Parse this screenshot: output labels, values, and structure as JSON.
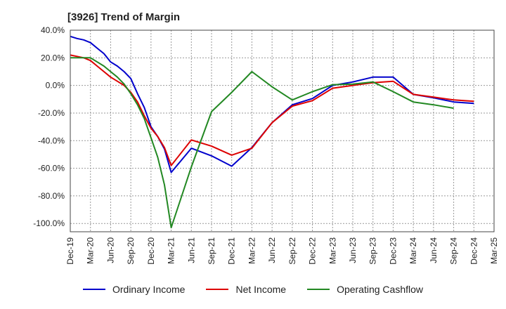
{
  "chart_data": {
    "type": "line",
    "title": "[3926]  Trend of Margin",
    "xlabel": "",
    "ylabel": "",
    "ylim": [
      -106,
      40
    ],
    "yticks": [
      40,
      20,
      0,
      -20,
      -40,
      -60,
      -80,
      -100
    ],
    "yticklabels": [
      "40.0%",
      "20.0%",
      "0.0%",
      "-20.0%",
      "-40.0%",
      "-60.0%",
      "-80.0%",
      "-100.0%"
    ],
    "xticklabels": [
      "Dec-19",
      "Mar-20",
      "Jun-20",
      "Sep-20",
      "Dec-20",
      "Mar-21",
      "Jun-21",
      "Sep-21",
      "Dec-21",
      "Mar-22",
      "Jun-22",
      "Sep-22",
      "Dec-22",
      "Mar-23",
      "Jun-23",
      "Sep-23",
      "Dec-23",
      "Mar-24",
      "Jun-24",
      "Sep-24",
      "Dec-24",
      "Mar-25"
    ],
    "grid": true,
    "legend_position": "bottom",
    "series": [
      {
        "name": "Ordinary Income",
        "color": "#0000cc",
        "x": [
          "Dec-19",
          "Jan-20",
          "Feb-20",
          "Mar-20",
          "Apr-20",
          "May-20",
          "Jun-20",
          "Jul-20",
          "Aug-20",
          "Sep-20",
          "Oct-20",
          "Nov-20",
          "Dec-20",
          "Jan-21",
          "Feb-21",
          "Mar-21",
          "Jun-21",
          "Sep-21",
          "Dec-21",
          "Mar-22",
          "Jun-22",
          "Sep-22",
          "Dec-22",
          "Mar-23",
          "Jun-23",
          "Sep-23",
          "Dec-23",
          "Mar-24",
          "Jun-24",
          "Sep-24",
          "Dec-24"
        ],
        "values": [
          35.5,
          34,
          33,
          31,
          27,
          23,
          17,
          14,
          10,
          5,
          -6,
          -16,
          -30,
          -37,
          -46,
          -63,
          -45.5,
          -51,
          -58.5,
          -45,
          -27,
          -14,
          -9.5,
          0,
          2.5,
          6,
          6,
          -6.5,
          -9,
          -12,
          -13
        ]
      },
      {
        "name": "Net Income",
        "color": "#dd0000",
        "x": [
          "Dec-19",
          "Jan-20",
          "Feb-20",
          "Mar-20",
          "Apr-20",
          "May-20",
          "Jun-20",
          "Jul-20",
          "Aug-20",
          "Sep-20",
          "Oct-20",
          "Nov-20",
          "Dec-20",
          "Jan-21",
          "Feb-21",
          "Mar-21",
          "Jun-21",
          "Sep-21",
          "Dec-21",
          "Mar-22",
          "Jun-22",
          "Sep-22",
          "Dec-22",
          "Mar-23",
          "Jun-23",
          "Sep-23",
          "Dec-23",
          "Mar-24",
          "Jun-24",
          "Sep-24",
          "Dec-24"
        ],
        "values": [
          22,
          21,
          20,
          18,
          14,
          10,
          6,
          3,
          0,
          -5,
          -12,
          -22,
          -31,
          -37,
          -45,
          -58,
          -39.5,
          -44,
          -50.5,
          -45.5,
          -27,
          -15,
          -11,
          -2,
          0,
          2,
          3,
          -6.5,
          -8.5,
          -10.5,
          -11.5
        ]
      },
      {
        "name": "Operating Cashflow",
        "color": "#228822",
        "x": [
          "Dec-19",
          "Jan-20",
          "Feb-20",
          "Mar-20",
          "Apr-20",
          "May-20",
          "Jun-20",
          "Jul-20",
          "Aug-20",
          "Sep-20",
          "Oct-20",
          "Nov-20",
          "Dec-20",
          "Jan-21",
          "Feb-21",
          "Mar-21",
          "Jun-21",
          "Sep-21",
          "Dec-21",
          "Mar-22",
          "Jun-22",
          "Sep-22",
          "Dec-22",
          "Mar-23",
          "Jun-23",
          "Sep-23",
          "Dec-23",
          "Mar-24",
          "Jun-24",
          "Sep-24"
        ],
        "values": [
          20,
          20,
          20,
          20,
          17,
          14,
          10,
          6,
          1,
          -6,
          -14,
          -24,
          -38,
          -52,
          -72,
          -103,
          -59,
          -19,
          -5,
          10,
          -1,
          -10.5,
          -4.5,
          0.5,
          1,
          2.5,
          -4.5,
          -12,
          -14,
          -16.5
        ]
      }
    ]
  }
}
